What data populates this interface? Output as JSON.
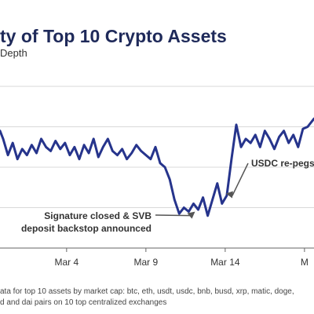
{
  "chart_data": {
    "type": "line",
    "title": "ty of Top 10 Crypto Assets",
    "subtitle": "Depth",
    "xlabel": "",
    "ylabel": "",
    "x_tick_labels": [
      "Mar 4",
      "Mar 9",
      "Mar 14",
      "M"
    ],
    "x_tick_positions": [
      4,
      9,
      14,
      19
    ],
    "xlim": [
      -0.2,
      19.6
    ],
    "ylim": [
      0,
      4
    ],
    "grid": "horizontal",
    "legend": "none",
    "series": [
      {
        "color": "#26348c",
        "x": [
          -0.2,
          0.0,
          0.3,
          0.6,
          0.9,
          1.2,
          1.5,
          1.8,
          2.1,
          2.4,
          2.7,
          3.0,
          3.3,
          3.6,
          3.9,
          4.2,
          4.5,
          4.8,
          5.1,
          5.4,
          5.7,
          6.0,
          6.3,
          6.6,
          6.9,
          7.2,
          7.5,
          7.8,
          8.1,
          8.4,
          8.7,
          9.0,
          9.3,
          9.6,
          9.9,
          10.2,
          10.5,
          10.8,
          11.1,
          11.4,
          11.7,
          12.0,
          12.3,
          12.6,
          12.9,
          13.2,
          13.5,
          13.8,
          14.1,
          14.4,
          14.7,
          15.0,
          15.3,
          15.6,
          15.9,
          16.2,
          16.5,
          16.8,
          17.1,
          17.4,
          17.7,
          18.0,
          18.3,
          18.6,
          18.9,
          19.2,
          19.6
        ],
        "y": [
          2.9,
          2.7,
          2.3,
          2.6,
          2.2,
          2.45,
          2.3,
          2.55,
          2.35,
          2.7,
          2.5,
          2.4,
          2.65,
          2.45,
          2.6,
          2.3,
          2.5,
          2.2,
          2.55,
          2.35,
          2.7,
          2.25,
          2.5,
          2.7,
          2.4,
          2.3,
          2.45,
          2.2,
          2.35,
          2.55,
          2.4,
          2.3,
          2.2,
          2.5,
          2.1,
          2.0,
          1.7,
          1.2,
          0.85,
          1.0,
          0.9,
          1.1,
          0.95,
          1.25,
          0.8,
          1.2,
          1.6,
          1.1,
          1.3,
          2.2,
          3.05,
          2.5,
          2.7,
          2.6,
          2.8,
          2.5,
          2.9,
          2.7,
          2.45,
          2.75,
          2.9,
          2.6,
          2.8,
          2.5,
          2.95,
          3.0,
          3.2
        ]
      }
    ],
    "annotations": [
      {
        "lines": [
          "USDC re-pegs"
        ],
        "x": 14.05,
        "y": 1.35
      },
      {
        "lines": [
          "Signature closed & SVB",
          "deposit backstop announced"
        ],
        "x": 12.1,
        "y": 0.9
      }
    ]
  },
  "footnote": {
    "line1": "ata for top 10 assets by market cap: btc, eth, usdt, usdc, bnb, busd, xrp, matic, doge,",
    "line2": "d and dai pairs on 10 top centralized exchanges"
  }
}
